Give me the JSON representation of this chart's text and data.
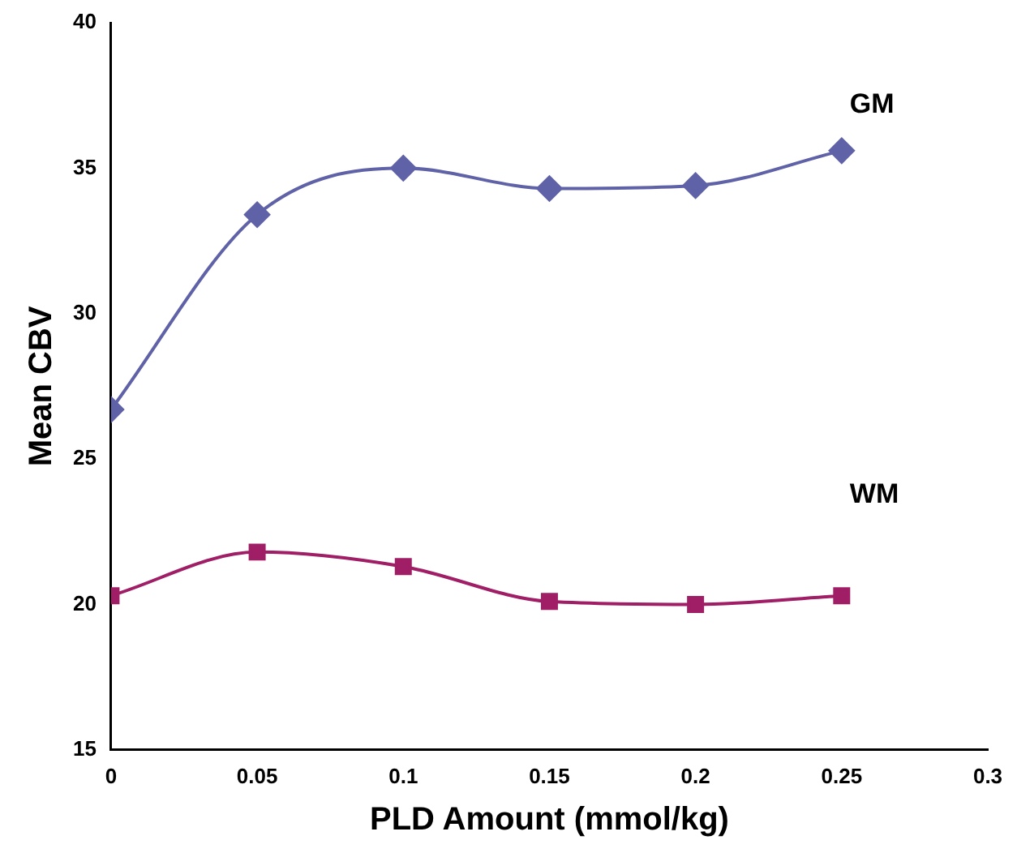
{
  "chart_data": {
    "type": "line",
    "xlabel": "PLD Amount (mmol/kg)",
    "ylabel": "Mean CBV",
    "x": [
      0,
      0.05,
      0.1,
      0.15,
      0.2,
      0.25
    ],
    "series": [
      {
        "name": "GM",
        "color": "#6062a8",
        "marker": "diamond",
        "values": [
          26.7,
          33.4,
          35.0,
          34.3,
          34.4,
          35.6
        ]
      },
      {
        "name": "WM",
        "color": "#a01e66",
        "marker": "square",
        "values": [
          20.3,
          21.8,
          21.3,
          20.1,
          20.0,
          20.3
        ]
      }
    ],
    "xlim": [
      0,
      0.3
    ],
    "xticks": [
      0,
      0.05,
      0.1,
      0.15,
      0.2,
      0.25,
      0.3
    ],
    "ylim": [
      15,
      40
    ],
    "yticks": [
      15,
      20,
      25,
      30,
      35,
      40
    ],
    "grid": false,
    "legend": false
  }
}
